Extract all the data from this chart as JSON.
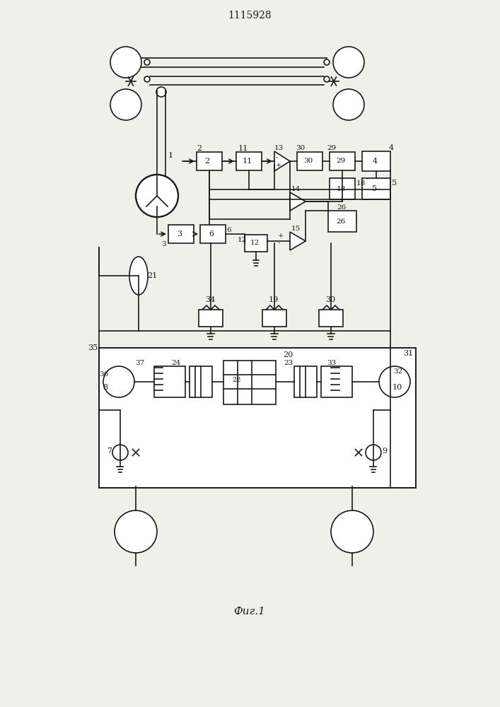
{
  "title": "1115928",
  "fig_label": "Фиг.1",
  "bg_color": "#f0f0eb",
  "line_color": "#1a1a1a",
  "lw": 1.2,
  "figsize": [
    7.07,
    10.0
  ]
}
